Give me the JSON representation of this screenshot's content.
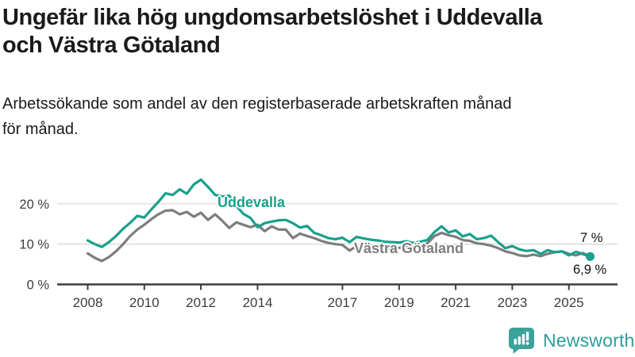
{
  "title": {
    "lines": [
      "Ungefär lika hög ungdomsarbetslöshet i Uddevalla",
      "och Västra Götaland"
    ]
  },
  "subtitle": {
    "lines": [
      "Arbetssökande som andel av den registerbaserade arbetskraften månad",
      "för månad."
    ]
  },
  "theme": {
    "background": "#ffffff",
    "text_color": "#1a1a1a",
    "axis_color": "#3d3d3d",
    "grid_color": "#d9d9d9",
    "accent_teal": "#18a08c",
    "accent_gray": "#7d7d7d",
    "brand_teal": "#2f9d98"
  },
  "chart_data": {
    "type": "line",
    "title": "",
    "xlabel": "",
    "ylabel": "",
    "x_start_year": 2008,
    "points_per_year": 4,
    "x_end": "2025 (sista punkt, oktober)",
    "ylim": [
      0,
      28
    ],
    "grid": true,
    "grid_values": [
      10,
      20
    ],
    "legend_position": "inline-labels",
    "yticks": [
      {
        "label": "20 %",
        "value": 20
      },
      {
        "label": "10 %",
        "value": 10
      },
      {
        "label": "0 %",
        "value": 0
      }
    ],
    "xticks": [
      {
        "label": "2008",
        "year": 2008
      },
      {
        "label": "2010",
        "year": 2010
      },
      {
        "label": "2012",
        "year": 2012
      },
      {
        "label": "2014",
        "year": 2014
      },
      {
        "label": "2017",
        "year": 2017
      },
      {
        "label": "2019",
        "year": 2019
      },
      {
        "label": "2021",
        "year": 2021
      },
      {
        "label": "2023",
        "year": 2023
      },
      {
        "label": "2025",
        "year": 2025
      }
    ],
    "series": [
      {
        "name": "Uddevalla",
        "color": "#18a08c",
        "end_label": "6,9 %",
        "end_value": 6.9,
        "end_dot": true,
        "values": [
          10.9,
          10.0,
          9.3,
          10.5,
          12.0,
          13.8,
          15.3,
          17.0,
          16.6,
          18.6,
          20.5,
          22.6,
          22.2,
          23.6,
          22.5,
          24.8,
          26.0,
          24.2,
          22.2,
          21.8,
          22.0,
          19.5,
          17.5,
          16.5,
          14.2,
          15.2,
          15.6,
          15.9,
          16.0,
          15.2,
          14.1,
          14.5,
          12.8,
          12.2,
          11.5,
          11.2,
          11.6,
          10.5,
          11.8,
          11.4,
          11.1,
          10.9,
          10.6,
          10.5,
          10.4,
          10.7,
          10.3,
          10.6,
          11.0,
          13.0,
          14.4,
          12.9,
          13.4,
          11.9,
          12.5,
          11.2,
          11.5,
          12.1,
          10.5,
          9.0,
          9.5,
          8.7,
          8.3,
          8.5,
          7.6,
          8.5,
          8.0,
          8.2,
          7.2,
          8.1,
          7.5,
          6.9
        ]
      },
      {
        "name": "Västra Götaland",
        "color": "#7d7d7d",
        "end_label": "7 %",
        "end_value": 7.0,
        "end_dot": false,
        "values": [
          7.7,
          6.6,
          5.8,
          6.8,
          8.2,
          10.0,
          12.0,
          13.6,
          14.8,
          16.2,
          17.4,
          18.3,
          18.4,
          17.4,
          18.0,
          16.8,
          17.8,
          16.0,
          17.4,
          15.8,
          14.0,
          15.4,
          14.8,
          14.2,
          14.8,
          13.2,
          14.4,
          13.6,
          13.6,
          11.5,
          12.6,
          12.0,
          11.5,
          10.8,
          10.3,
          10.0,
          9.8,
          8.4,
          9.5,
          9.3,
          9.2,
          9.0,
          8.9,
          9.0,
          9.1,
          9.3,
          9.2,
          9.5,
          10.2,
          12.0,
          12.8,
          12.2,
          11.8,
          11.0,
          10.8,
          10.2,
          10.0,
          9.6,
          9.0,
          8.2,
          7.8,
          7.2,
          7.0,
          7.4,
          7.0,
          7.6,
          8.0,
          8.2,
          7.6,
          7.2,
          7.8,
          7.0
        ]
      }
    ]
  },
  "footer": {
    "brand": "Newsworthy"
  }
}
